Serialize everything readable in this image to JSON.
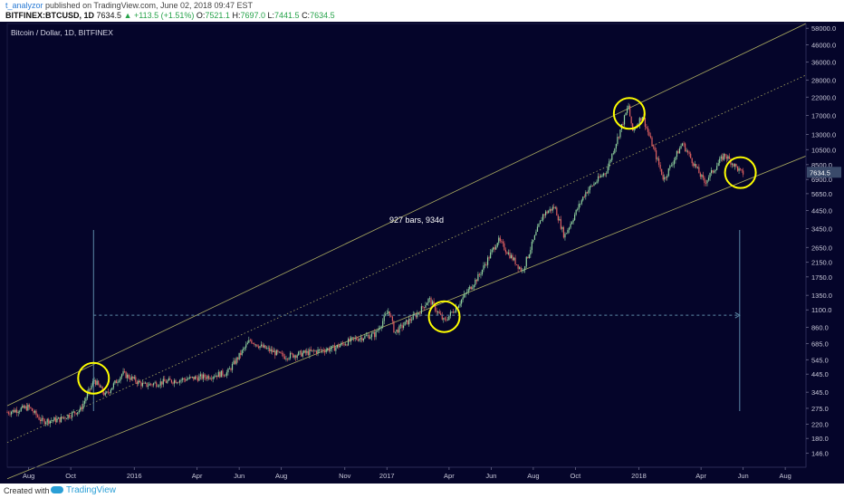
{
  "header": {
    "author": "t_analyzor",
    "published_text": " published on TradingView.com, June 02, 2018 09:47 EST",
    "symbol": "BITFINEX:BTCUSD, 1D",
    "last": "7634.5",
    "change": "▲ +113.5 (+1.51%)",
    "open_label": "O:",
    "open": "7521.1",
    "high_label": "H:",
    "high": "7697.0",
    "low_label": "L:",
    "low": "7441.5",
    "close_label": "C:",
    "close": "7634.5"
  },
  "colors": {
    "background": "#05052a",
    "up_candle": "#8fd19e",
    "down_candle": "#e06060",
    "channel": "#c8c86a",
    "circle": "#ffff00",
    "measure": "#5d8aa8",
    "price_tag": "#3a4a6a"
  },
  "chart_data": {
    "type": "line",
    "title": "Bitcoin / Dollar, 1D, BITFINEX",
    "y_scale": "log",
    "ylim": [
      120,
      62000
    ],
    "y_ticks": [
      58000.0,
      46000.0,
      36000.0,
      28000.0,
      22000.0,
      17000.0,
      13000.0,
      10500.0,
      8500.0,
      6900.0,
      5650.0,
      4450.0,
      3450.0,
      2650.0,
      2150.0,
      1750.0,
      1350.0,
      1100.0,
      860.0,
      685.0,
      545.0,
      445.0,
      345.0,
      275.0,
      220.0,
      180.0,
      146.0
    ],
    "y_tick_labels": [
      "58000.0",
      "46000.0",
      "36000.0",
      "28000.0",
      "22000.0",
      "17000.0",
      "13000.0",
      "10500.0",
      "8500.0",
      "6900.0",
      "5650.0",
      "4450.0",
      "3450.0",
      "2650.0",
      "2150.0",
      "1750.0",
      "1350.0",
      "1100.0",
      "860.0",
      "685.0",
      "545.0",
      "445.0",
      "345.0",
      "275.0",
      "220.0",
      "180.0",
      "146.0"
    ],
    "x_ticks": [
      "Aug",
      "Oct",
      "2016",
      "Apr",
      "Jun",
      "Aug",
      "Nov",
      "2017",
      "Apr",
      "Jun",
      "Aug",
      "Oct",
      "2018",
      "Apr",
      "Jun",
      "Aug"
    ],
    "x_range": [
      "2015-07-01",
      "2018-08-31"
    ],
    "last_price_label": "7634.5",
    "measure_label": "927 bars, 934d",
    "series": [
      {
        "values": [
          [
            "2015-07-01",
            260
          ],
          [
            "2015-08-01",
            280
          ],
          [
            "2015-08-20",
            230
          ],
          [
            "2015-09-15",
            235
          ],
          [
            "2015-10-15",
            270
          ],
          [
            "2015-11-04",
            410
          ],
          [
            "2015-11-20",
            330
          ],
          [
            "2015-12-15",
            450
          ],
          [
            "2016-01-15",
            380
          ],
          [
            "2016-02-15",
            400
          ],
          [
            "2016-03-15",
            415
          ],
          [
            "2016-04-15",
            430
          ],
          [
            "2016-05-15",
            455
          ],
          [
            "2016-06-17",
            720
          ],
          [
            "2016-07-01",
            660
          ],
          [
            "2016-08-05",
            570
          ],
          [
            "2016-09-15",
            610
          ],
          [
            "2016-10-15",
            640
          ],
          [
            "2016-11-15",
            730
          ],
          [
            "2016-12-15",
            780
          ],
          [
            "2017-01-04",
            1100
          ],
          [
            "2017-01-12",
            800
          ],
          [
            "2017-02-15",
            1050
          ],
          [
            "2017-03-03",
            1280
          ],
          [
            "2017-03-25",
            930
          ],
          [
            "2017-04-15",
            1200
          ],
          [
            "2017-05-15",
            1800
          ],
          [
            "2017-06-11",
            2950
          ],
          [
            "2017-07-16",
            1900
          ],
          [
            "2017-08-15",
            4200
          ],
          [
            "2017-09-01",
            4700
          ],
          [
            "2017-09-15",
            3100
          ],
          [
            "2017-10-15",
            5700
          ],
          [
            "2017-11-15",
            7800
          ],
          [
            "2017-12-17",
            19500
          ],
          [
            "2017-12-22",
            13500
          ],
          [
            "2018-01-06",
            17000
          ],
          [
            "2018-02-06",
            6900
          ],
          [
            "2018-03-05",
            11500
          ],
          [
            "2018-04-06",
            6600
          ],
          [
            "2018-05-05",
            9800
          ],
          [
            "2018-05-31",
            7450
          ],
          [
            "2018-06-02",
            7634.5
          ]
        ]
      }
    ],
    "channel_lines": [
      {
        "style": "solid",
        "points": [
          [
            "2015-07-01",
            285
          ],
          [
            "2018-08-31",
            62000
          ]
        ]
      },
      {
        "style": "dotted",
        "points": [
          [
            "2015-07-01",
            170
          ],
          [
            "2018-08-31",
            30000
          ]
        ]
      },
      {
        "style": "solid",
        "points": [
          [
            "2015-07-01",
            102
          ],
          [
            "2018-08-31",
            9600
          ]
        ]
      }
    ],
    "circled_points": [
      [
        "2015-11-03",
        420
      ],
      [
        "2017-03-25",
        1000
      ],
      [
        "2017-12-18",
        17500
      ],
      [
        "2018-05-28",
        7600
      ]
    ],
    "measure_range": {
      "start": "2015-11-03",
      "end": "2018-05-27",
      "level": 1020,
      "bars": 927,
      "days": 934
    }
  },
  "footer": {
    "created_text": "Created with",
    "brand": "TradingView"
  }
}
